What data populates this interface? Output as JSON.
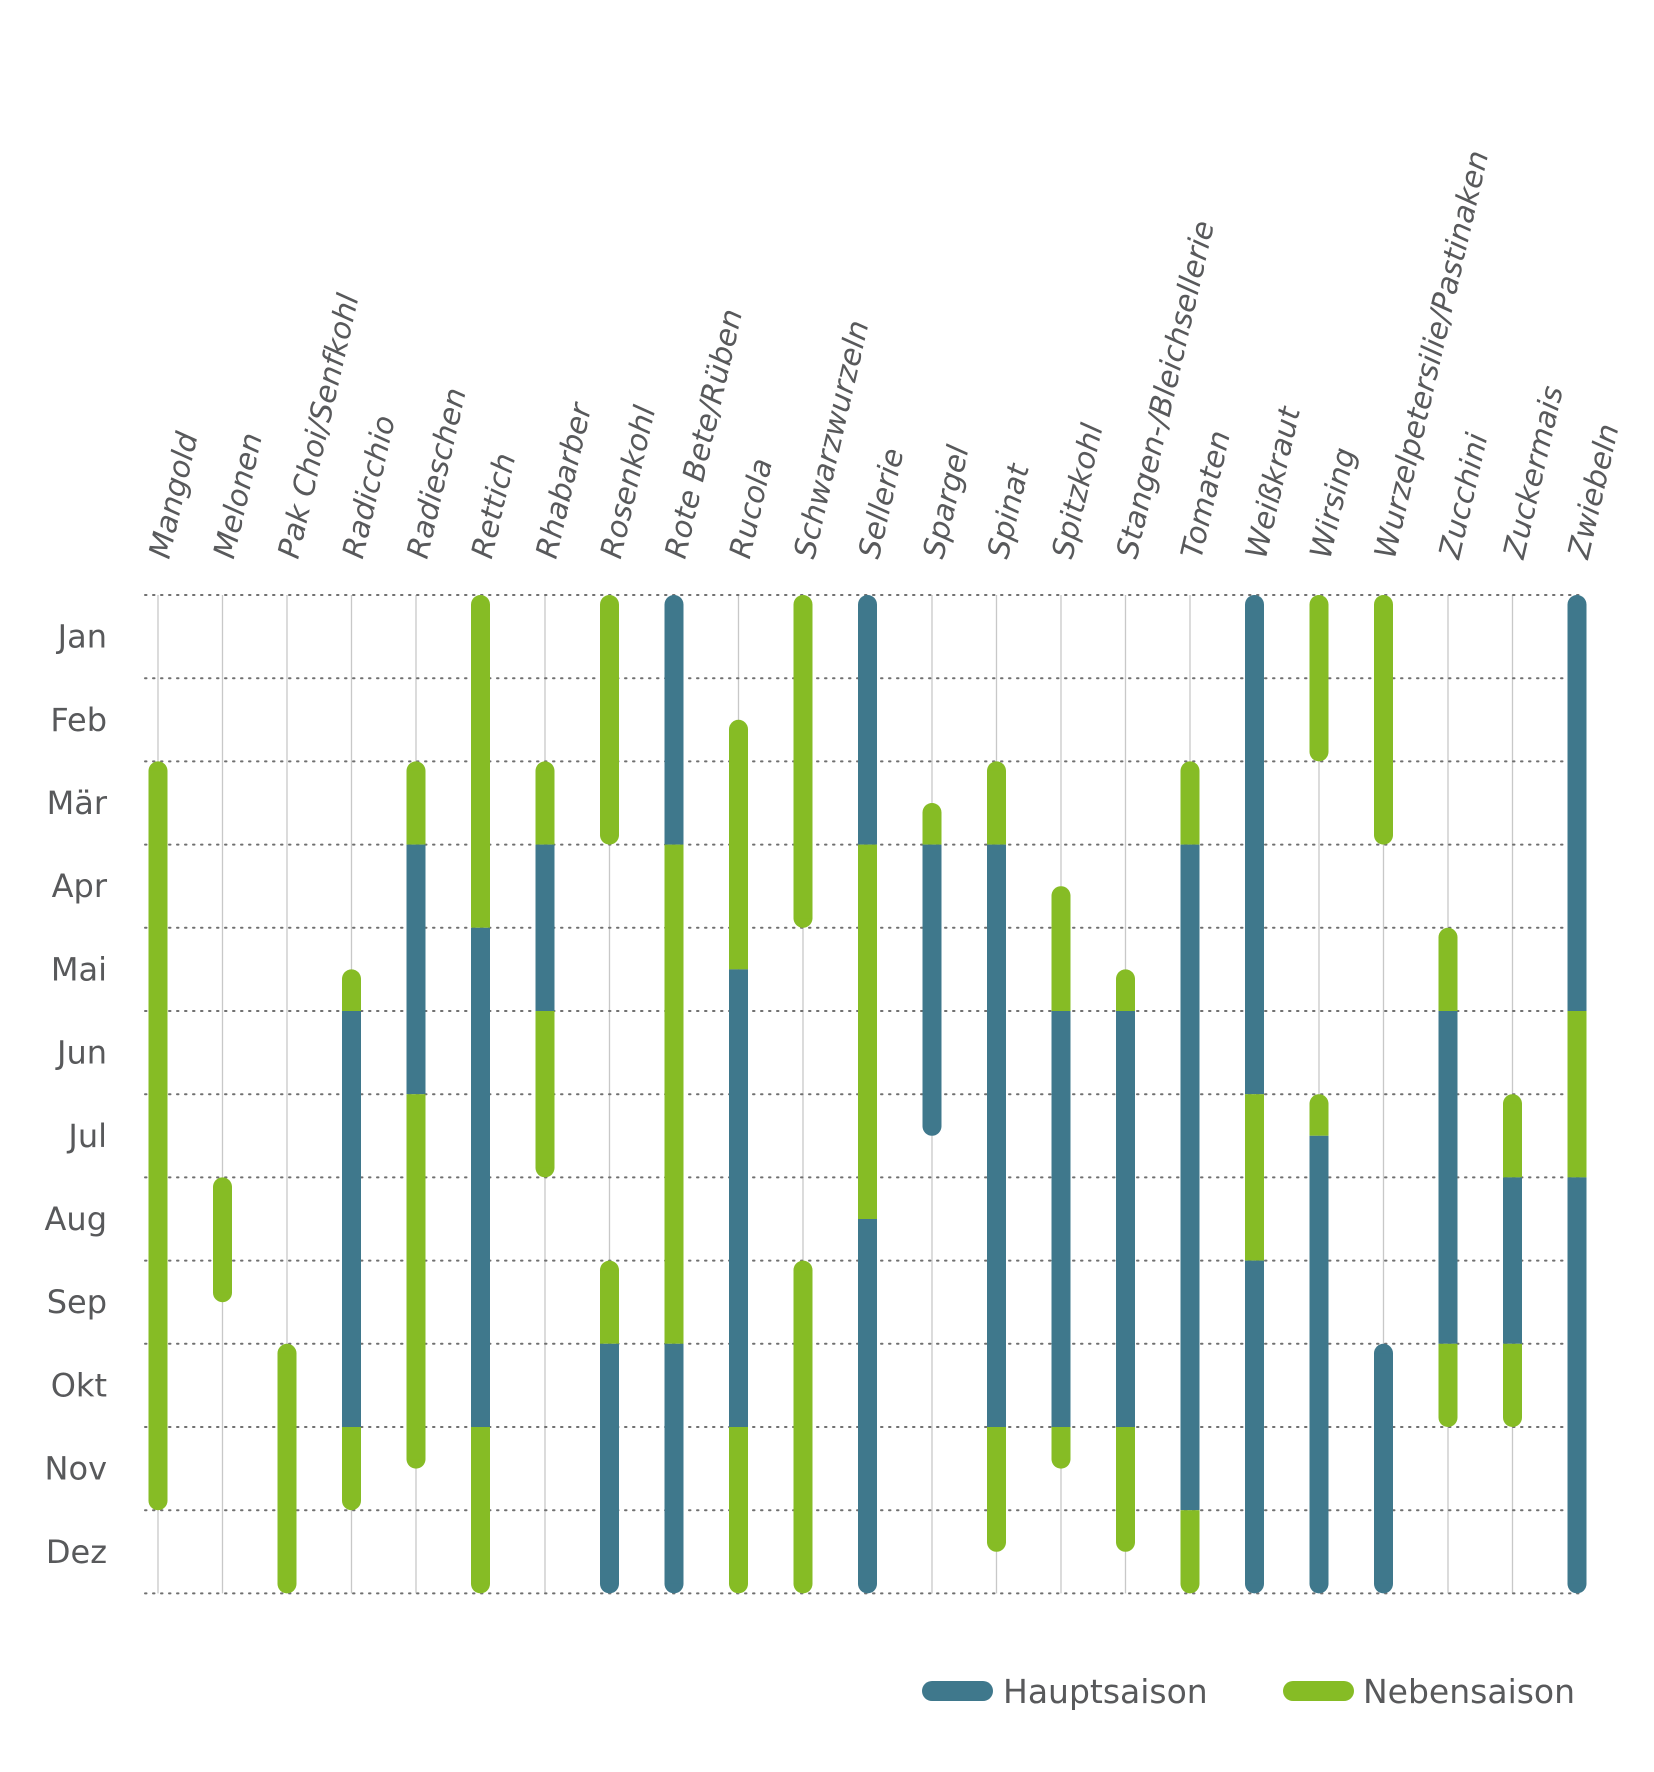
{
  "chart_data": {
    "type": "gantt",
    "title": "",
    "months": [
      "Jan",
      "Feb",
      "Mär",
      "Apr",
      "Mai",
      "Jun",
      "Jul",
      "Aug",
      "Sep",
      "Okt",
      "Nov",
      "Dez"
    ],
    "vegetables": [
      "Mangold",
      "Melonen",
      "Pak Choi/Senfkohl",
      "Radicchio",
      "Radieschen",
      "Rettich",
      "Rhabarber",
      "Rosenkohl",
      "Rote Bete/Rüben",
      "Rucola",
      "Schwarzwurzeln",
      "Sellerie",
      "Spargel",
      "Spinat",
      "Spitzkohl",
      "Stangen-/Bleichsellerie",
      "Tomaten",
      "Weißkraut",
      "Wirsing",
      "Wurzelpetersilie/Pastinaken",
      "Zucchini",
      "Zuckermais",
      "Zwiebeln"
    ],
    "legend": [
      {
        "key": "haupt",
        "label": "Hauptsaison",
        "color": "#3f788c"
      },
      {
        "key": "neben",
        "label": "Nebensaison",
        "color": "#86bc25"
      }
    ],
    "season_unit": "month index, 0 = start of Jan, 12 = end of Dez",
    "seasons": [
      {
        "veg": "Mangold",
        "segments": [
          {
            "type": "neben",
            "start": 2,
            "end": 11
          }
        ]
      },
      {
        "veg": "Melonen",
        "segments": [
          {
            "type": "neben",
            "start": 7,
            "end": 8.5
          }
        ]
      },
      {
        "veg": "Pak Choi/Senfkohl",
        "segments": [
          {
            "type": "neben",
            "start": 9,
            "end": 12
          }
        ]
      },
      {
        "veg": "Radicchio",
        "segments": [
          {
            "type": "neben",
            "start": 4.5,
            "end": 5
          },
          {
            "type": "haupt",
            "start": 5,
            "end": 10
          },
          {
            "type": "neben",
            "start": 10,
            "end": 11
          }
        ]
      },
      {
        "veg": "Radieschen",
        "segments": [
          {
            "type": "neben",
            "start": 2,
            "end": 3
          },
          {
            "type": "haupt",
            "start": 3,
            "end": 6
          },
          {
            "type": "neben",
            "start": 6,
            "end": 10.5
          }
        ]
      },
      {
        "veg": "Rettich",
        "segments": [
          {
            "type": "neben",
            "start": 0,
            "end": 4
          },
          {
            "type": "haupt",
            "start": 4,
            "end": 10
          },
          {
            "type": "neben",
            "start": 10,
            "end": 12
          }
        ]
      },
      {
        "veg": "Rhabarber",
        "segments": [
          {
            "type": "neben",
            "start": 2,
            "end": 3
          },
          {
            "type": "haupt",
            "start": 3,
            "end": 5
          },
          {
            "type": "neben",
            "start": 5,
            "end": 7
          }
        ]
      },
      {
        "veg": "Rosenkohl",
        "segments": [
          {
            "type": "neben",
            "start": 0,
            "end": 3
          },
          {
            "type": "neben",
            "start": 8,
            "end": 9
          },
          {
            "type": "haupt",
            "start": 9,
            "end": 12
          }
        ]
      },
      {
        "veg": "Rote Bete/Rüben",
        "segments": [
          {
            "type": "haupt",
            "start": 0,
            "end": 3
          },
          {
            "type": "neben",
            "start": 3,
            "end": 9
          },
          {
            "type": "haupt",
            "start": 9,
            "end": 12
          }
        ]
      },
      {
        "veg": "Rucola",
        "segments": [
          {
            "type": "neben",
            "start": 1.5,
            "end": 4.5
          },
          {
            "type": "haupt",
            "start": 4.5,
            "end": 10
          },
          {
            "type": "neben",
            "start": 10,
            "end": 12
          }
        ]
      },
      {
        "veg": "Schwarzwurzeln",
        "segments": [
          {
            "type": "neben",
            "start": 0,
            "end": 4
          },
          {
            "type": "neben",
            "start": 8,
            "end": 12
          }
        ]
      },
      {
        "veg": "Sellerie",
        "segments": [
          {
            "type": "haupt",
            "start": 0,
            "end": 3
          },
          {
            "type": "neben",
            "start": 3,
            "end": 7.5
          },
          {
            "type": "haupt",
            "start": 7.5,
            "end": 12
          }
        ]
      },
      {
        "veg": "Spargel",
        "segments": [
          {
            "type": "neben",
            "start": 2.5,
            "end": 3
          },
          {
            "type": "haupt",
            "start": 3,
            "end": 6.5
          }
        ]
      },
      {
        "veg": "Spinat",
        "segments": [
          {
            "type": "neben",
            "start": 2,
            "end": 3
          },
          {
            "type": "haupt",
            "start": 3,
            "end": 10
          },
          {
            "type": "neben",
            "start": 10,
            "end": 11.5
          }
        ]
      },
      {
        "veg": "Spitzkohl",
        "segments": [
          {
            "type": "neben",
            "start": 3.5,
            "end": 5
          },
          {
            "type": "haupt",
            "start": 5,
            "end": 10
          },
          {
            "type": "neben",
            "start": 10,
            "end": 10.5
          }
        ]
      },
      {
        "veg": "Stangen-/Bleichsellerie",
        "segments": [
          {
            "type": "neben",
            "start": 4.5,
            "end": 5
          },
          {
            "type": "haupt",
            "start": 5,
            "end": 10
          },
          {
            "type": "neben",
            "start": 10,
            "end": 11.5
          }
        ]
      },
      {
        "veg": "Tomaten",
        "segments": [
          {
            "type": "neben",
            "start": 2,
            "end": 3
          },
          {
            "type": "haupt",
            "start": 3,
            "end": 11
          },
          {
            "type": "neben",
            "start": 11,
            "end": 12
          }
        ]
      },
      {
        "veg": "Weißkraut",
        "segments": [
          {
            "type": "haupt",
            "start": 0,
            "end": 6
          },
          {
            "type": "neben",
            "start": 6,
            "end": 8
          },
          {
            "type": "haupt",
            "start": 8,
            "end": 12
          }
        ]
      },
      {
        "veg": "Wirsing",
        "segments": [
          {
            "type": "neben",
            "start": 0,
            "end": 2
          },
          {
            "type": "neben",
            "start": 6,
            "end": 6.5
          },
          {
            "type": "haupt",
            "start": 6.5,
            "end": 12
          }
        ]
      },
      {
        "veg": "Wurzelpetersilie/Pastinaken",
        "segments": [
          {
            "type": "neben",
            "start": 0,
            "end": 3
          },
          {
            "type": "haupt",
            "start": 9,
            "end": 12
          }
        ]
      },
      {
        "veg": "Zucchini",
        "segments": [
          {
            "type": "neben",
            "start": 4,
            "end": 5
          },
          {
            "type": "haupt",
            "start": 5,
            "end": 9
          },
          {
            "type": "neben",
            "start": 9,
            "end": 10
          }
        ]
      },
      {
        "veg": "Zuckermais",
        "segments": [
          {
            "type": "neben",
            "start": 6,
            "end": 7
          },
          {
            "type": "haupt",
            "start": 7,
            "end": 9
          },
          {
            "type": "neben",
            "start": 9,
            "end": 10
          }
        ]
      },
      {
        "veg": "Zwiebeln",
        "segments": [
          {
            "type": "haupt",
            "start": 0,
            "end": 5
          },
          {
            "type": "neben",
            "start": 5,
            "end": 7
          },
          {
            "type": "haupt",
            "start": 7,
            "end": 12
          }
        ]
      }
    ]
  }
}
